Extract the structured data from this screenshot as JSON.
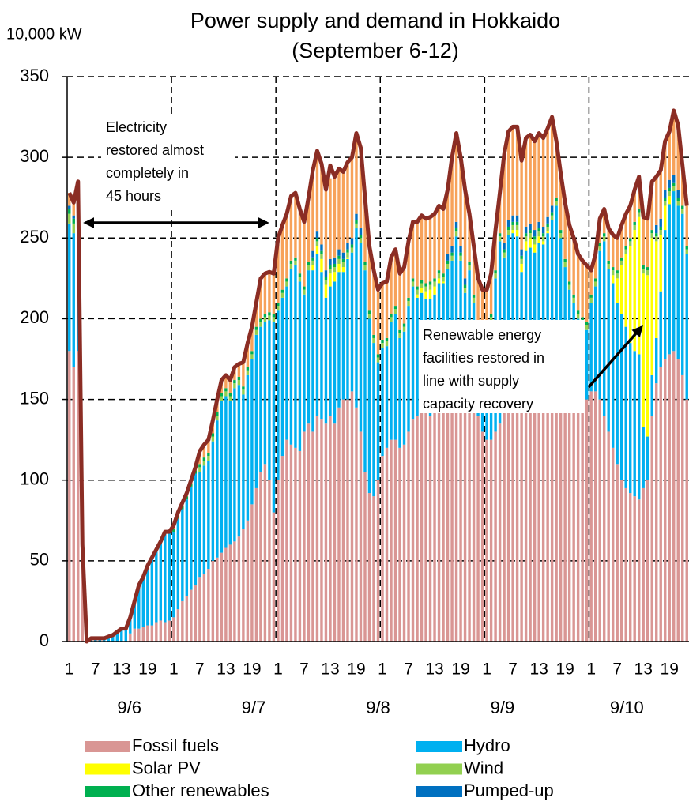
{
  "chart_data": {
    "type": "bar",
    "stacked": true,
    "title": "Power supply and demand in Hokkaido",
    "subtitle": "(September 6-12)",
    "y_label": "10,000 kW",
    "ylim": [
      0,
      350
    ],
    "yticks": [
      0,
      50,
      100,
      150,
      200,
      250,
      300,
      350
    ],
    "xlim": [
      0.5,
      143.5
    ],
    "xticks": [
      1,
      7,
      13,
      19,
      {
        "value": 25,
        "label": "1"
      },
      {
        "value": 31,
        "label": "7"
      },
      {
        "value": 37,
        "label": "13"
      },
      {
        "value": 43,
        "label": "19"
      },
      {
        "value": 49,
        "label": "1"
      },
      {
        "value": 55,
        "label": "7"
      },
      {
        "value": 61,
        "label": "13"
      },
      {
        "value": 67,
        "label": "19"
      },
      {
        "value": 73,
        "label": "1"
      },
      {
        "value": 79,
        "label": "7"
      },
      {
        "value": 85,
        "label": "13"
      },
      {
        "value": 91,
        "label": "19"
      },
      {
        "value": 97,
        "label": "1"
      },
      {
        "value": 103,
        "label": "7"
      },
      {
        "value": 109,
        "label": "13"
      },
      {
        "value": 115,
        "label": "19"
      },
      {
        "value": 121,
        "label": "1"
      },
      {
        "value": 127,
        "label": "7"
      },
      {
        "value": 133,
        "label": "13"
      },
      {
        "value": 139,
        "label": "19"
      }
    ],
    "groups": [
      "9/6",
      "9/7",
      "9/8",
      "9/9",
      "9/10"
    ],
    "grid": true,
    "x": [
      1,
      2,
      3,
      4,
      5,
      6,
      7,
      8,
      9,
      10,
      11,
      12,
      13,
      14,
      15,
      16,
      17,
      18,
      19,
      20,
      21,
      22,
      23,
      24,
      25,
      26,
      27,
      28,
      29,
      30,
      31,
      32,
      33,
      34,
      35,
      36,
      37,
      38,
      39,
      40,
      41,
      42,
      43,
      44,
      45,
      46,
      47,
      48,
      49,
      50,
      51,
      52,
      53,
      54,
      55,
      56,
      57,
      58,
      59,
      60,
      61,
      62,
      63,
      64,
      65,
      66,
      67,
      68,
      69,
      70,
      71,
      72,
      73,
      74,
      75,
      76,
      77,
      78,
      79,
      80,
      81,
      82,
      83,
      84,
      85,
      86,
      87,
      88,
      89,
      90,
      91,
      92,
      93,
      94,
      95,
      96,
      97,
      98,
      99,
      100,
      101,
      102,
      103,
      104,
      105,
      106,
      107,
      108,
      109,
      110,
      111,
      112,
      113,
      114,
      115,
      116,
      117,
      118,
      119,
      120,
      121,
      122,
      123,
      124,
      125,
      126,
      127,
      128,
      129,
      130,
      131,
      132,
      133,
      134,
      135,
      136,
      137,
      138,
      139,
      140,
      141,
      142,
      143
    ],
    "series": [
      {
        "name": "Fossil fuels",
        "color": "#d99694",
        "values": [
          180,
          170,
          180,
          55,
          0,
          0,
          0,
          0,
          0,
          0,
          0,
          0,
          0,
          0,
          5,
          8,
          8,
          9,
          10,
          10,
          12,
          13,
          12,
          13,
          15,
          20,
          25,
          28,
          32,
          35,
          40,
          42,
          45,
          50,
          52,
          55,
          58,
          60,
          62,
          65,
          70,
          75,
          85,
          95,
          105,
          110,
          100,
          80,
          100,
          115,
          125,
          122,
          120,
          118,
          130,
          135,
          130,
          140,
          138,
          135,
          140,
          135,
          145,
          150,
          150,
          155,
          145,
          130,
          105,
          92,
          90,
          100,
          115,
          120,
          125,
          125,
          120,
          122,
          130,
          138,
          140,
          145,
          142,
          140,
          145,
          150,
          150,
          155,
          165,
          170,
          165,
          160,
          155,
          145,
          140,
          130,
          125,
          125,
          130,
          135,
          145,
          150,
          150,
          150,
          148,
          150,
          152,
          150,
          152,
          155,
          158,
          160,
          158,
          155,
          150,
          148,
          150,
          150,
          152,
          150,
          155,
          155,
          150,
          140,
          130,
          120,
          110,
          100,
          95,
          92,
          90,
          88,
          95,
          100,
          140,
          160,
          170,
          175,
          178,
          180,
          175,
          165,
          150
        ]
      },
      {
        "name": "Hydro",
        "color": "#00b0f0",
        "values": [
          79,
          83,
          86,
          5,
          0,
          2,
          2,
          2,
          2,
          3,
          4,
          6,
          8,
          8,
          10,
          17,
          27,
          31,
          37,
          42,
          45,
          49,
          56,
          55,
          53,
          56,
          57,
          60,
          64,
          69,
          65,
          67,
          67,
          74,
          85,
          94,
          94,
          89,
          95,
          94,
          83,
          90,
          90,
          95,
          90,
          88,
          99,
          118,
          105,
          98,
          95,
          109,
          113,
          105,
          85,
          95,
          100,
          100,
          91,
          78,
          80,
          88,
          84,
          79,
          87,
          86,
          111,
          117,
          125,
          108,
          95,
          73,
          67,
          63,
          73,
          78,
          68,
          70,
          78,
          82,
          73,
          71,
          70,
          72,
          70,
          72,
          72,
          76,
          71,
          81,
          71,
          56,
          75,
          65,
          50,
          53,
          63,
          73,
          95,
          113,
          93,
          102,
          103,
          101,
          81,
          92,
          92,
          91,
          95,
          91,
          95,
          101,
          112,
          95,
          82,
          70,
          60,
          50,
          44,
          43,
          55,
          65,
          92,
          108,
          101,
          102,
          100,
          103,
          100,
          93,
          90,
          90,
          38,
          27,
          25,
          28,
          47,
          80,
          93,
          99,
          95,
          100,
          90
        ]
      },
      {
        "name": "Solar PV",
        "color": "#ffff00",
        "values": [
          0,
          0,
          0,
          0,
          0,
          0,
          0,
          0,
          0,
          0,
          0,
          0,
          0,
          0,
          0,
          0,
          0,
          0,
          0,
          0,
          0,
          0,
          0,
          0,
          0,
          0,
          0,
          0,
          0,
          0,
          0,
          0,
          0,
          0,
          0,
          0,
          0,
          0,
          0,
          0,
          0,
          0,
          0,
          0,
          0,
          0,
          0,
          0,
          0,
          0,
          0,
          0,
          0,
          0,
          0,
          0,
          3,
          5,
          8,
          8,
          8,
          6,
          5,
          3,
          1,
          0,
          0,
          0,
          0,
          0,
          0,
          0,
          0,
          0,
          0,
          0,
          0,
          0,
          0,
          0,
          2,
          3,
          5,
          6,
          5,
          3,
          1,
          0,
          0,
          0,
          0,
          0,
          0,
          0,
          0,
          0,
          0,
          0,
          0,
          0,
          0,
          0,
          2,
          4,
          5,
          6,
          6,
          5,
          4,
          2,
          1,
          0,
          0,
          0,
          0,
          0,
          0,
          0,
          0,
          0,
          0,
          0,
          0,
          0,
          0,
          5,
          15,
          30,
          45,
          60,
          75,
          85,
          95,
          100,
          85,
          60,
          35,
          15,
          5,
          0,
          0,
          0,
          0
        ]
      },
      {
        "name": "Wind",
        "color": "#92d050",
        "values": [
          6,
          6,
          6,
          0,
          0,
          0,
          0,
          0,
          0,
          0,
          0,
          0,
          0,
          0,
          0,
          0,
          0,
          0,
          0,
          0,
          0,
          0,
          0,
          0,
          0,
          0,
          0,
          0,
          0,
          0,
          3,
          3,
          3,
          3,
          3,
          3,
          3,
          3,
          3,
          3,
          3,
          3,
          3,
          3,
          3,
          3,
          3,
          3,
          3,
          3,
          3,
          3,
          3,
          3,
          3,
          3,
          3,
          3,
          3,
          3,
          3,
          3,
          3,
          3,
          3,
          3,
          3,
          3,
          3,
          3,
          3,
          3,
          3,
          3,
          3,
          3,
          3,
          3,
          3,
          3,
          3,
          3,
          3,
          3,
          3,
          3,
          3,
          3,
          3,
          3,
          3,
          3,
          3,
          3,
          3,
          3,
          3,
          3,
          3,
          3,
          3,
          3,
          3,
          3,
          3,
          3,
          3,
          3,
          3,
          3,
          3,
          3,
          3,
          3,
          3,
          3,
          3,
          3,
          3,
          3,
          3,
          3,
          3,
          3,
          3,
          3,
          3,
          3,
          3,
          3,
          3,
          3,
          3,
          3,
          3,
          3,
          3,
          3,
          3,
          3,
          3,
          3,
          3
        ]
      },
      {
        "name": "Other renewables",
        "color": "#00b050",
        "values": [
          3,
          3,
          3,
          0,
          0,
          0,
          0,
          0,
          0,
          0,
          0,
          0,
          0,
          0,
          0,
          0,
          0,
          0,
          0,
          0,
          0,
          0,
          0,
          0,
          2,
          2,
          2,
          2,
          2,
          2,
          2,
          2,
          2,
          2,
          2,
          2,
          2,
          2,
          2,
          2,
          2,
          2,
          2,
          2,
          2,
          2,
          2,
          2,
          2,
          2,
          2,
          2,
          2,
          2,
          2,
          2,
          2,
          2,
          2,
          2,
          2,
          2,
          2,
          2,
          2,
          2,
          2,
          2,
          2,
          2,
          2,
          2,
          2,
          2,
          2,
          2,
          2,
          2,
          2,
          2,
          2,
          2,
          2,
          2,
          2,
          2,
          2,
          2,
          2,
          2,
          2,
          2,
          2,
          2,
          2,
          2,
          2,
          2,
          2,
          2,
          2,
          2,
          2,
          2,
          2,
          2,
          2,
          2,
          2,
          2,
          2,
          2,
          2,
          2,
          2,
          2,
          2,
          2,
          2,
          2,
          2,
          2,
          2,
          2,
          2,
          2,
          2,
          2,
          2,
          2,
          2,
          2,
          2,
          2,
          2,
          2,
          2,
          2,
          2,
          2,
          2,
          2,
          2
        ]
      },
      {
        "name": "Pumped-up",
        "color": "#0070c0",
        "values": [
          2,
          2,
          2,
          0,
          0,
          0,
          0,
          0,
          0,
          0,
          0,
          0,
          0,
          0,
          0,
          0,
          0,
          0,
          0,
          0,
          0,
          0,
          0,
          0,
          0,
          0,
          0,
          0,
          0,
          0,
          0,
          0,
          0,
          0,
          0,
          0,
          0,
          0,
          0,
          0,
          0,
          0,
          0,
          0,
          0,
          0,
          0,
          0,
          0,
          0,
          0,
          0,
          0,
          0,
          0,
          0,
          4,
          4,
          4,
          4,
          4,
          4,
          4,
          4,
          4,
          4,
          4,
          4,
          0,
          0,
          0,
          0,
          0,
          0,
          0,
          0,
          0,
          0,
          0,
          0,
          0,
          0,
          0,
          0,
          0,
          0,
          0,
          4,
          4,
          4,
          4,
          4,
          0,
          0,
          0,
          0,
          0,
          0,
          0,
          0,
          4,
          4,
          4,
          4,
          4,
          4,
          4,
          4,
          4,
          4,
          4,
          4,
          0,
          0,
          0,
          0,
          0,
          0,
          0,
          0,
          0,
          0,
          0,
          0,
          0,
          0,
          0,
          0,
          0,
          0,
          0,
          0,
          0,
          0,
          0,
          5,
          5,
          5,
          5,
          5,
          5,
          0,
          0
        ]
      },
      {
        "color": "#f7a25a",
        "values": [
          8,
          8,
          8,
          0,
          0,
          0,
          0,
          0,
          0,
          0,
          0,
          0,
          0,
          0,
          0,
          0,
          0,
          0,
          0,
          0,
          0,
          0,
          0,
          0,
          2,
          2,
          2,
          2,
          2,
          2,
          8,
          8,
          8,
          8,
          8,
          8,
          8,
          8,
          8,
          8,
          15,
          15,
          15,
          15,
          25,
          25,
          25,
          25,
          40,
          40,
          40,
          40,
          40,
          40,
          40,
          40,
          50,
          50,
          50,
          50,
          50,
          50,
          50,
          50,
          50,
          50,
          50,
          50,
          40,
          40,
          40,
          40,
          35,
          35,
          35,
          35,
          35,
          35,
          35,
          35,
          40,
          40,
          40,
          40,
          40,
          40,
          40,
          40,
          55,
          55,
          55,
          55,
          30,
          30,
          30,
          30,
          25,
          25,
          25,
          25,
          55,
          55,
          55,
          55,
          55,
          55,
          55,
          55,
          55,
          55,
          55,
          55,
          35,
          35,
          35,
          35,
          35,
          35,
          35,
          35,
          15,
          15,
          15,
          15,
          20,
          20,
          20,
          20,
          20,
          20,
          20,
          20,
          30,
          30,
          30,
          30,
          30,
          30,
          30,
          40,
          40,
          25,
          25
        ]
      }
    ],
    "line": {
      "color": "#8b2d24",
      "values": [
        278,
        272,
        285,
        60,
        0,
        2,
        2,
        2,
        2,
        3,
        4,
        6,
        8,
        8,
        15,
        25,
        35,
        40,
        47,
        52,
        57,
        62,
        68,
        68,
        72,
        80,
        86,
        92,
        100,
        108,
        118,
        122,
        125,
        137,
        150,
        162,
        165,
        162,
        170,
        172,
        173,
        185,
        195,
        210,
        225,
        228,
        229,
        228,
        250,
        258,
        265,
        276,
        278,
        268,
        260,
        275,
        292,
        304,
        296,
        280,
        295,
        288,
        293,
        291,
        297,
        300,
        315,
        306,
        275,
        245,
        230,
        218,
        222,
        223,
        238,
        243,
        228,
        232,
        248,
        260,
        260,
        264,
        262,
        263,
        265,
        270,
        268,
        280,
        300,
        315,
        300,
        280,
        265,
        245,
        225,
        218,
        218,
        228,
        255,
        278,
        302,
        316,
        319,
        319,
        298,
        312,
        314,
        310,
        315,
        312,
        318,
        325,
        310,
        290,
        272,
        258,
        250,
        240,
        236,
        233,
        230,
        240,
        262,
        268,
        256,
        252,
        250,
        258,
        265,
        270,
        280,
        288,
        263,
        262,
        285,
        288,
        292,
        310,
        316,
        329,
        320,
        295,
        270
      ]
    },
    "annotations": [
      {
        "lines": [
          "Electricity",
          "restored almost",
          "completely in",
          "45 hours"
        ]
      },
      {
        "lines": [
          "Renewable energy",
          "facilities restored in",
          "line with supply",
          "capacity recovery"
        ]
      }
    ]
  }
}
